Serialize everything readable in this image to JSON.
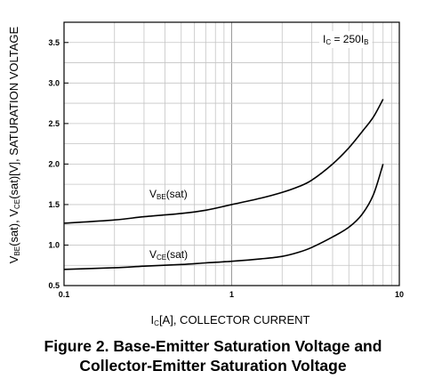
{
  "chart_data": {
    "type": "line",
    "x_scale": "log",
    "xlim": [
      0.1,
      10
    ],
    "ylim": [
      0.5,
      3.75
    ],
    "x_ticks": [
      {
        "value": 0.1,
        "label": "0.1"
      },
      {
        "value": 1,
        "label": "1"
      },
      {
        "value": 10,
        "label": "10"
      }
    ],
    "y_ticks": [
      {
        "value": 0.5,
        "label": "0.5"
      },
      {
        "value": 1.0,
        "label": "1.0"
      },
      {
        "value": 1.5,
        "label": "1.5"
      },
      {
        "value": 2.0,
        "label": "2.0"
      },
      {
        "value": 2.5,
        "label": "2.5"
      },
      {
        "value": 3.0,
        "label": "3.0"
      },
      {
        "value": 3.5,
        "label": "3.5"
      }
    ],
    "grid": true,
    "xlabel": {
      "main": "I",
      "sub": "C",
      "rest": "[A], COLLECTOR CURRENT"
    },
    "ylabel": {
      "p1": "V",
      "s1": "BE",
      "p2": "(sat), V",
      "s2": "CE",
      "p3": "(sat)[V], SATURATION VOLTAGE"
    },
    "condition": {
      "p1": "I",
      "s1": "C",
      "p2": " = 250I",
      "s2": "B"
    },
    "series": [
      {
        "name": "VBE(sat)",
        "label": {
          "main": "V",
          "sub": "BE",
          "rest": "(sat)"
        },
        "x": [
          0.1,
          0.2,
          0.3,
          0.5,
          0.7,
          1.0,
          1.5,
          2.0,
          2.5,
          3.0,
          4.0,
          5.0,
          6.0,
          7.0,
          8.0
        ],
        "y": [
          1.27,
          1.31,
          1.35,
          1.39,
          1.43,
          1.5,
          1.58,
          1.65,
          1.72,
          1.8,
          2.0,
          2.2,
          2.4,
          2.58,
          2.8
        ]
      },
      {
        "name": "VCE(sat)",
        "label": {
          "main": "V",
          "sub": "CE",
          "rest": "(sat)"
        },
        "x": [
          0.1,
          0.2,
          0.3,
          0.5,
          0.7,
          1.0,
          1.5,
          2.0,
          2.5,
          3.0,
          4.0,
          5.0,
          6.0,
          7.0,
          8.0
        ],
        "y": [
          0.7,
          0.72,
          0.74,
          0.76,
          0.78,
          0.8,
          0.83,
          0.86,
          0.91,
          0.97,
          1.1,
          1.22,
          1.38,
          1.62,
          2.0
        ]
      }
    ]
  },
  "caption": {
    "line1": "Figure 2. Base-Emitter Saturation Voltage and",
    "line2": "Collector-Emitter Saturation Voltage"
  }
}
